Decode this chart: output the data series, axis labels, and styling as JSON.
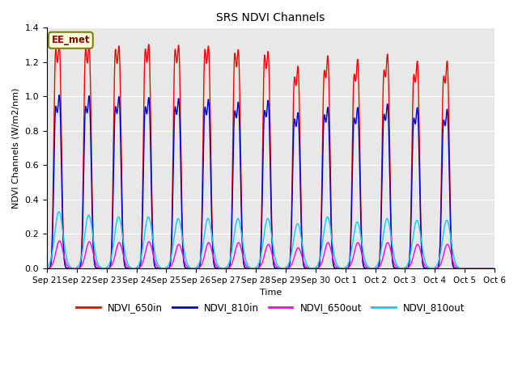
{
  "title": "SRS NDVI Channels",
  "ylabel": "NDVI Channels (W/m2/nm)",
  "xlabel": "Time",
  "annotation": "EE_met",
  "ylim": [
    0.0,
    1.4
  ],
  "fig_facecolor": "#ffffff",
  "plot_bg_color": "#e8e8e8",
  "series": [
    {
      "label": "NDVI_650in",
      "color": "#ff0000"
    },
    {
      "label": "NDVI_810in",
      "color": "#0000cc"
    },
    {
      "label": "NDVI_650out",
      "color": "#ff00ff"
    },
    {
      "label": "NDVI_810out",
      "color": "#00ccff"
    }
  ],
  "tick_labels": [
    "Sep 21",
    "Sep 22",
    "Sep 23",
    "Sep 24",
    "Sep 25",
    "Sep 26",
    "Sep 27",
    "Sep 28",
    "Sep 29",
    "Sep 30",
    "Oct 1",
    "Oct 2",
    "Oct 3",
    "Oct 4",
    "Oct 5",
    "Oct 6"
  ],
  "peaks_650in_a": [
    1.12,
    1.12,
    1.12,
    1.12,
    1.12,
    1.12,
    1.1,
    1.09,
    0.97,
    1.0,
    0.98,
    1.0,
    0.98,
    0.97
  ],
  "peaks_650in_b": [
    1.25,
    1.245,
    1.24,
    1.25,
    1.245,
    1.24,
    1.22,
    1.21,
    1.13,
    1.19,
    1.17,
    1.2,
    1.16,
    1.16
  ],
  "peaks_810in_a": [
    0.82,
    0.82,
    0.82,
    0.82,
    0.82,
    0.82,
    0.8,
    0.8,
    0.76,
    0.78,
    0.76,
    0.78,
    0.76,
    0.75
  ],
  "peaks_810in_b": [
    0.97,
    0.965,
    0.96,
    0.955,
    0.95,
    0.945,
    0.93,
    0.94,
    0.87,
    0.9,
    0.9,
    0.92,
    0.9,
    0.89
  ],
  "peaks_650out": [
    0.16,
    0.155,
    0.15,
    0.155,
    0.14,
    0.15,
    0.15,
    0.14,
    0.12,
    0.15,
    0.15,
    0.15,
    0.14,
    0.14
  ],
  "peaks_810out": [
    0.33,
    0.31,
    0.3,
    0.3,
    0.29,
    0.29,
    0.29,
    0.29,
    0.26,
    0.3,
    0.27,
    0.29,
    0.28,
    0.28
  ]
}
